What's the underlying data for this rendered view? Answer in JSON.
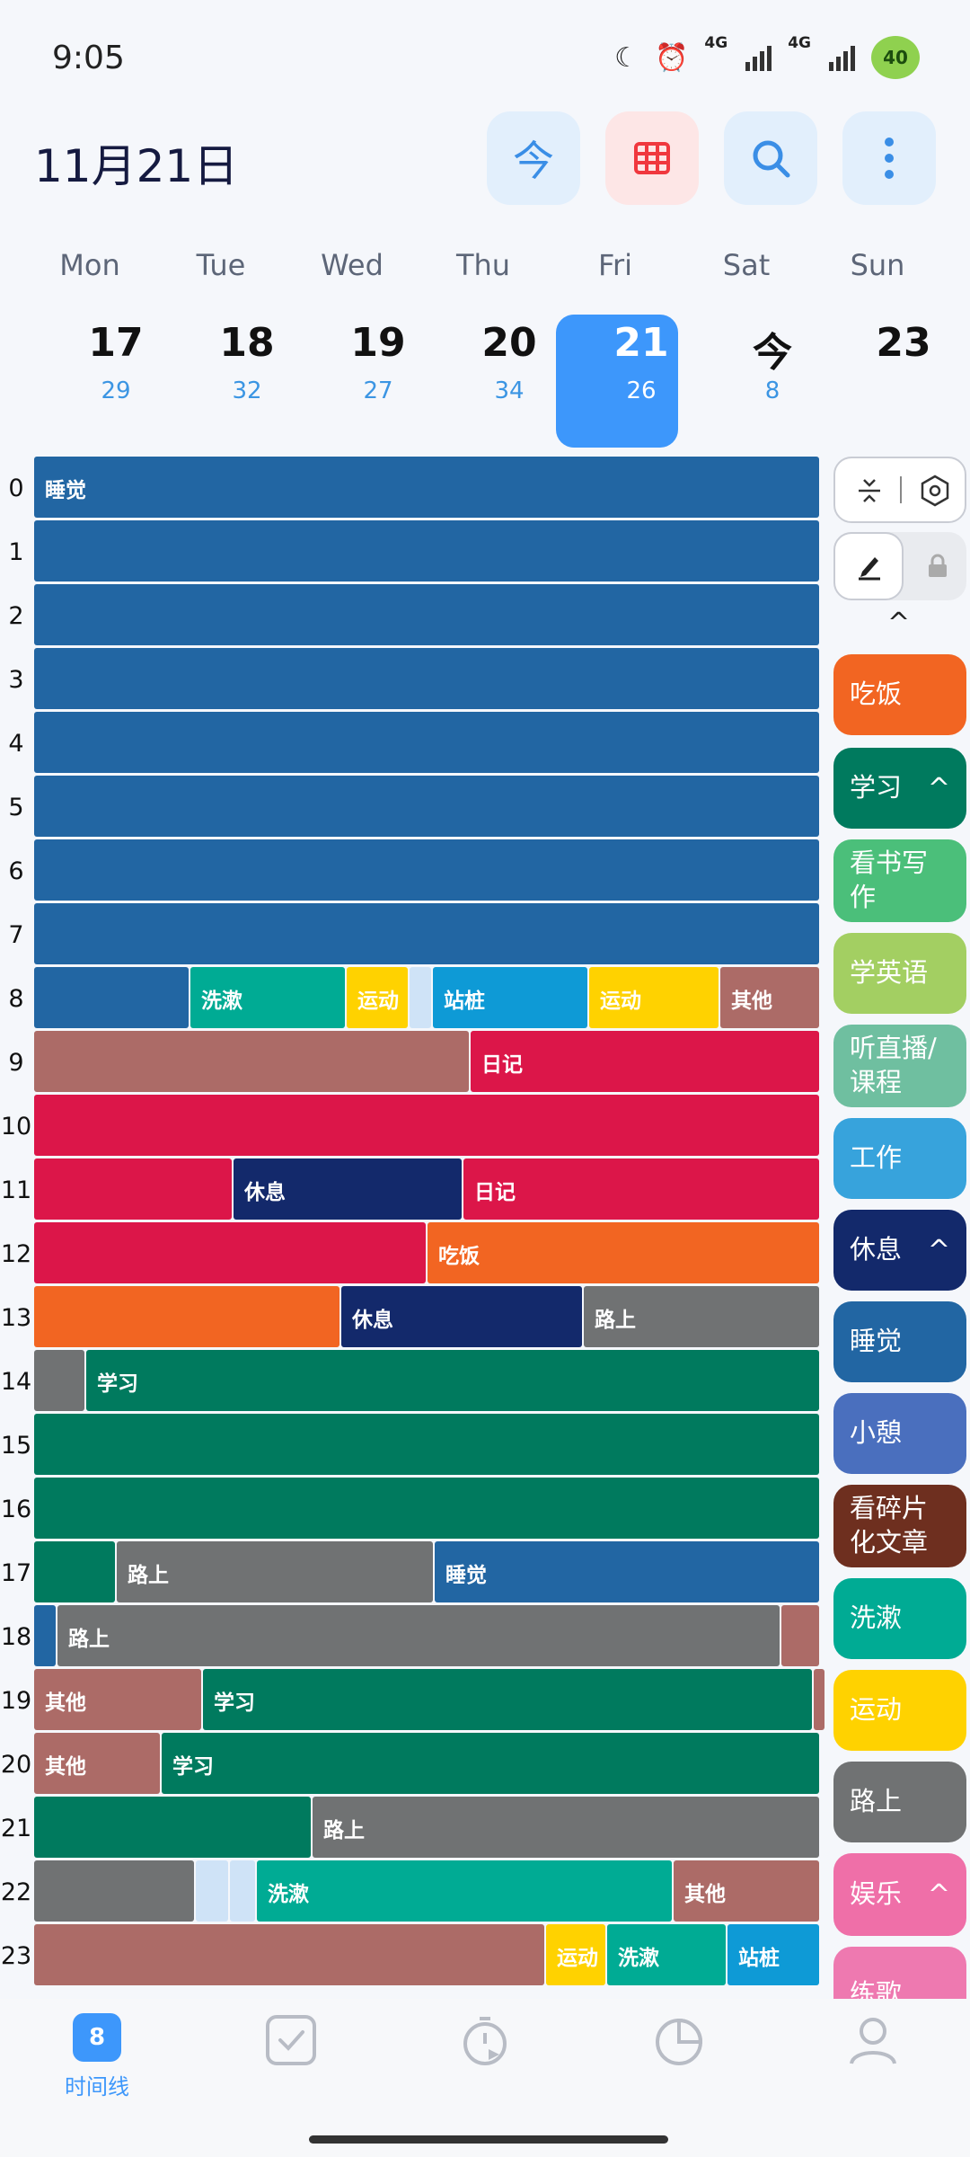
{
  "status": {
    "time": "9:05",
    "net1": "4G",
    "net2": "4G",
    "battery": "40"
  },
  "header": {
    "date": "11月21日",
    "today_label": "今"
  },
  "week": {
    "days": [
      "Mon",
      "Tue",
      "Wed",
      "Thu",
      "Fri",
      "Sat",
      "Sun"
    ],
    "dates": [
      "17",
      "18",
      "19",
      "20",
      "21",
      "今",
      "23"
    ],
    "counts": [
      "29",
      "32",
      "27",
      "34",
      "26",
      "8",
      ""
    ]
  },
  "hours": [
    "0",
    "1",
    "2",
    "3",
    "4",
    "5",
    "6",
    "7",
    "8",
    "9",
    "10",
    "11",
    "12",
    "13",
    "14",
    "15",
    "16",
    "17",
    "18",
    "19",
    "20",
    "21",
    "22",
    "23"
  ],
  "timeline": {
    "labels": {
      "sleep": "睡觉",
      "wash": "洗漱",
      "sport": "运动",
      "stand": "站桩",
      "other": "其他",
      "diary": "日记",
      "rest": "休息",
      "eat": "吃饭",
      "road": "路上",
      "study": "学习"
    }
  },
  "categories": [
    {
      "label": "吃饭",
      "color": "#f26522",
      "expand": ""
    },
    {
      "label": "学习",
      "color": "#007a5e",
      "expand": "^"
    },
    {
      "label": "看书写作",
      "color": "#4bbf7a",
      "expand": ""
    },
    {
      "label": "学英语",
      "color": "#a3cf62",
      "expand": ""
    },
    {
      "label": "听直播/课程",
      "color": "#6fbfa0",
      "expand": ""
    },
    {
      "label": "工作",
      "color": "#37a3dc",
      "expand": ""
    },
    {
      "label": "休息",
      "color": "#13296b",
      "expand": "^"
    },
    {
      "label": "睡觉",
      "color": "#2266a3",
      "expand": ""
    },
    {
      "label": "小憩",
      "color": "#4a6fbe",
      "expand": ""
    },
    {
      "label": "看碎片化文章",
      "color": "#6e2f1f",
      "expand": ""
    },
    {
      "label": "洗漱",
      "color": "#00ab94",
      "expand": ""
    },
    {
      "label": "运动",
      "color": "#ffd200",
      "expand": ""
    },
    {
      "label": "路上",
      "color": "#707273",
      "expand": ""
    },
    {
      "label": "娱乐",
      "color": "#ef6fa8",
      "expand": "^"
    },
    {
      "label": "练歌",
      "color": "#ee79b0",
      "expand": ""
    }
  ],
  "nav": {
    "timeline_label": "时间线",
    "badge": "8"
  }
}
